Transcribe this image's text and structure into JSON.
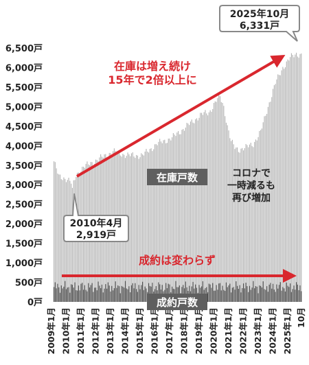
{
  "chart_data": {
    "type": "bar",
    "title": "",
    "xlabel": "",
    "ylabel": "",
    "ylim": [
      0,
      6500
    ],
    "y_ticks": [
      "0戸",
      "500戸",
      "1,000戸",
      "1,500戸",
      "2,000戸",
      "2,500戸",
      "3,000戸",
      "3,500戸",
      "4,000戸",
      "4,500戸",
      "5,000戸",
      "5,500戸",
      "6,000戸",
      "6,500戸"
    ],
    "x_ticks": [
      "2009年1月",
      "2010年1月",
      "2011年1月",
      "2012年1月",
      "2013年1月",
      "2014年1月",
      "2015年1月",
      "2016年1月",
      "2017年1月",
      "2018年1月",
      "2019年1月",
      "2020年1月",
      "2021年1月",
      "2022年1月",
      "2023年1月",
      "2024年1月",
      "2025年1月",
      "10月"
    ],
    "grid": false,
    "series": [
      {
        "name": "在庫戸数",
        "color": "#b3b3b3",
        "keypoints": [
          [
            "2009-01",
            3600
          ],
          [
            "2009-05",
            3200
          ],
          [
            "2009-12",
            3150
          ],
          [
            "2010-03",
            3050
          ],
          [
            "2010-04",
            2919
          ],
          [
            "2010-07",
            3250
          ],
          [
            "2011-01",
            3450
          ],
          [
            "2012-01",
            3650
          ],
          [
            "2013-01",
            3850
          ],
          [
            "2014-01",
            3750
          ],
          [
            "2015-01",
            3750
          ],
          [
            "2016-01",
            4050
          ],
          [
            "2017-01",
            4200
          ],
          [
            "2018-01",
            4500
          ],
          [
            "2019-01",
            4800
          ],
          [
            "2019-07",
            4850
          ],
          [
            "2020-01",
            5150
          ],
          [
            "2020-04",
            5250
          ],
          [
            "2020-07",
            5000
          ],
          [
            "2020-10",
            4500
          ],
          [
            "2021-01",
            4100
          ],
          [
            "2021-04",
            3950
          ],
          [
            "2021-07",
            3900
          ],
          [
            "2022-01",
            3950
          ],
          [
            "2022-07",
            4050
          ],
          [
            "2023-01",
            4350
          ],
          [
            "2023-07",
            5000
          ],
          [
            "2024-01",
            5600
          ],
          [
            "2024-07",
            6000
          ],
          [
            "2025-01",
            6250
          ],
          [
            "2025-06",
            6350
          ],
          [
            "2025-10",
            6331
          ]
        ]
      },
      {
        "name": "成約戸数",
        "color": "#3a3a3a",
        "base": 380,
        "amplitude": 160
      }
    ],
    "annotations": {
      "latest_label": [
        "2025年10月",
        "6,331戸"
      ],
      "low_label": [
        "2010年4月",
        "2,919戸"
      ],
      "stock_arrow_text": [
        "在庫は増え続け",
        "15年で2倍以上に"
      ],
      "sales_arrow_text": "成約は変わらず",
      "covid_text": [
        "コロナで",
        "一時減るも",
        "再び増加"
      ],
      "stock_legend": "在庫戸数",
      "sales_legend": "成約戸数"
    },
    "colors": {
      "accent": "#d9272e",
      "label_bg": "#5f5f5f",
      "label_text": "#ffffff"
    }
  }
}
